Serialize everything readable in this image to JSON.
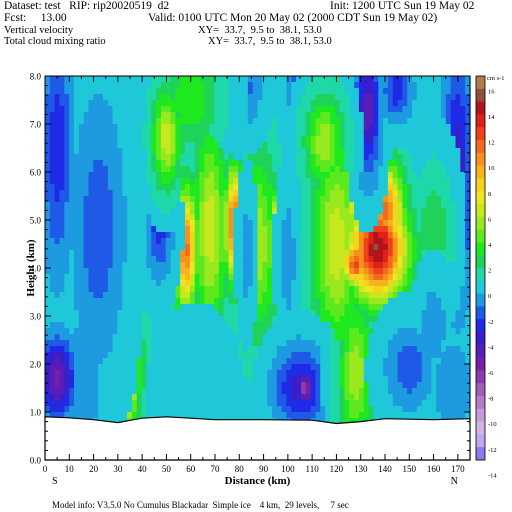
{
  "header": {
    "dataset": "Dataset: test   RIP: rip20020519  d2",
    "init": "Init: 1200 UTC Sun 19 May 02",
    "fcst": "Fcst:     13.00",
    "valid": "Valid: 0100 UTC Mon 20 May 02 (2000 CDT Sun 19 May 02)",
    "field1": "Vertical velocity",
    "xy1": "XY=  33.7,  9.5 to  38.1, 53.0",
    "field2": "Total cloud mixing ratio",
    "xy2": "XY=  33.7,  9.5 to  38.1, 53.0"
  },
  "footer": "Model info: V3.5.0 No Cumulus Blackadar  Simple ice    4 km,  29 levels,     7 sec",
  "colorbar": {
    "unit": "cm s-1",
    "labels": [
      "16",
      "14",
      "12",
      "10",
      "8",
      "6",
      "4",
      "2",
      "0",
      "-2",
      "-4",
      "-6",
      "-8",
      "-10",
      "-12",
      "-14"
    ],
    "colors": [
      "#b47a4a",
      "#8f4f3a",
      "#b2141e",
      "#e0201a",
      "#f0401a",
      "#f46a1a",
      "#f5921e",
      "#f5b41e",
      "#f5d21e",
      "#f0e61e",
      "#c8e81e",
      "#9ae81e",
      "#5ee81e",
      "#1ee81e",
      "#1ed25a",
      "#1ed8a8",
      "#1ec8d8",
      "#1e9ae0",
      "#1e5ae6",
      "#1e2ae6",
      "#3a1ec8",
      "#5a1eb8",
      "#7a1ea8",
      "#8e3aa8",
      "#a45ab8",
      "#b87ac8",
      "#c89ad8",
      "#d4b4e4",
      "#c0a8f0",
      "#8c78f0"
    ]
  },
  "chart_data": {
    "type": "heatmap",
    "title": "Vertical velocity",
    "xlabel": "Distance (km)",
    "ylabel": "Height (km)",
    "xlim": [
      0,
      175
    ],
    "ylim": [
      0,
      8
    ],
    "x_ticks": [
      "0",
      "10",
      "20",
      "30",
      "40",
      "50",
      "60",
      "70",
      "80",
      "90",
      "100",
      "110",
      "120",
      "130",
      "140",
      "150",
      "160",
      "170"
    ],
    "y_ticks": [
      "0.0",
      "1.0",
      "2.0",
      "3.0",
      "4.0",
      "5.0",
      "6.0",
      "7.0",
      "8.0"
    ],
    "x_end_labels": {
      "left": "S",
      "right": "N"
    },
    "terrain": [
      [
        0,
        0.9
      ],
      [
        10,
        0.88
      ],
      [
        20,
        0.84
      ],
      [
        30,
        0.78
      ],
      [
        40,
        0.87
      ],
      [
        50,
        0.9
      ],
      [
        60,
        0.87
      ],
      [
        70,
        0.84
      ],
      [
        90,
        0.84
      ],
      [
        110,
        0.83
      ],
      [
        120,
        0.76
      ],
      [
        130,
        0.8
      ],
      [
        140,
        0.86
      ],
      [
        150,
        0.85
      ],
      [
        160,
        0.84
      ],
      [
        175,
        0.86
      ]
    ],
    "features": [
      {
        "name": "background",
        "value": -1.5
      },
      {
        "x": 137,
        "y": 4.4,
        "rx": 12,
        "ry": 1.1,
        "value": 14
      },
      {
        "x": 128,
        "y": 4.1,
        "rx": 6,
        "ry": 0.5,
        "value": 11
      },
      {
        "x": 140,
        "y": 5.2,
        "rx": 8,
        "ry": 1.0,
        "value": 10
      },
      {
        "x": 132,
        "y": 5.4,
        "rx": 10,
        "ry": 1.4,
        "value": 7
      },
      {
        "x": 120,
        "y": 4.5,
        "rx": 10,
        "ry": 2.2,
        "value": 5
      },
      {
        "x": 58,
        "y": 4.4,
        "rx": 5,
        "ry": 1.3,
        "value": 10
      },
      {
        "x": 78,
        "y": 4.9,
        "rx": 4,
        "ry": 1.2,
        "value": 11
      },
      {
        "x": 68,
        "y": 4.8,
        "rx": 7,
        "ry": 2.2,
        "value": 5
      },
      {
        "x": 95,
        "y": 4.6,
        "rx": 3,
        "ry": 1.0,
        "value": 8
      },
      {
        "x": 88,
        "y": 4.5,
        "rx": 8,
        "ry": 2.0,
        "value": 4
      },
      {
        "x": 100,
        "y": 4.2,
        "rx": 3,
        "ry": 1.2,
        "value": -3
      },
      {
        "x": 83,
        "y": 4.3,
        "rx": 2.5,
        "ry": 1.0,
        "value": -3
      },
      {
        "x": 47,
        "y": 4.9,
        "rx": 5,
        "ry": 1.0,
        "value": -5
      },
      {
        "x": 33,
        "y": 1.7,
        "rx": 5,
        "ry": 0.9,
        "value": 11
      },
      {
        "x": 33,
        "y": 2.0,
        "rx": 7,
        "ry": 1.4,
        "value": 5
      },
      {
        "x": 5,
        "y": 1.7,
        "rx": 7,
        "ry": 0.8,
        "value": -8
      },
      {
        "x": 15,
        "y": 1.6,
        "rx": 8,
        "ry": 1.4,
        "value": -3
      },
      {
        "x": 105,
        "y": 1.5,
        "rx": 10,
        "ry": 0.8,
        "value": -6
      },
      {
        "x": 107,
        "y": 1.5,
        "rx": 4,
        "ry": 0.4,
        "value": -9
      },
      {
        "x": 62,
        "y": 1.5,
        "rx": 10,
        "ry": 0.9,
        "value": -2
      },
      {
        "x": 128,
        "y": 1.8,
        "rx": 7,
        "ry": 1.6,
        "value": 4
      },
      {
        "x": 150,
        "y": 1.9,
        "rx": 9,
        "ry": 0.8,
        "value": -4
      },
      {
        "x": 168,
        "y": 1.5,
        "rx": 8,
        "ry": 1.0,
        "value": -3
      },
      {
        "x": 109,
        "y": 7.6,
        "rx": 7,
        "ry": 0.8,
        "value": -9
      },
      {
        "x": 133,
        "y": 7.3,
        "rx": 5,
        "ry": 1.3,
        "value": -7
      },
      {
        "x": 145,
        "y": 7.7,
        "rx": 6,
        "ry": 0.6,
        "value": -5
      },
      {
        "x": 115,
        "y": 6.6,
        "rx": 8,
        "ry": 1.0,
        "value": 4
      },
      {
        "x": 80,
        "y": 7.7,
        "rx": 8,
        "ry": 0.7,
        "value": -4
      },
      {
        "x": 60,
        "y": 7.5,
        "rx": 12,
        "ry": 1.0,
        "value": 2
      },
      {
        "x": 50,
        "y": 6.7,
        "rx": 6,
        "ry": 1.0,
        "value": 5
      },
      {
        "x": 5,
        "y": 6.5,
        "rx": 6,
        "ry": 2.5,
        "value": -5
      },
      {
        "x": 22,
        "y": 4.8,
        "rx": 10,
        "ry": 2.5,
        "value": -4
      },
      {
        "x": 170,
        "y": 6.0,
        "rx": 6,
        "ry": 2.5,
        "value": -6
      },
      {
        "x": 160,
        "y": 4.8,
        "rx": 7,
        "ry": 1.2,
        "value": 1
      },
      {
        "x": 160,
        "y": 2.8,
        "rx": 5,
        "ry": 0.8,
        "value": -3
      }
    ]
  }
}
